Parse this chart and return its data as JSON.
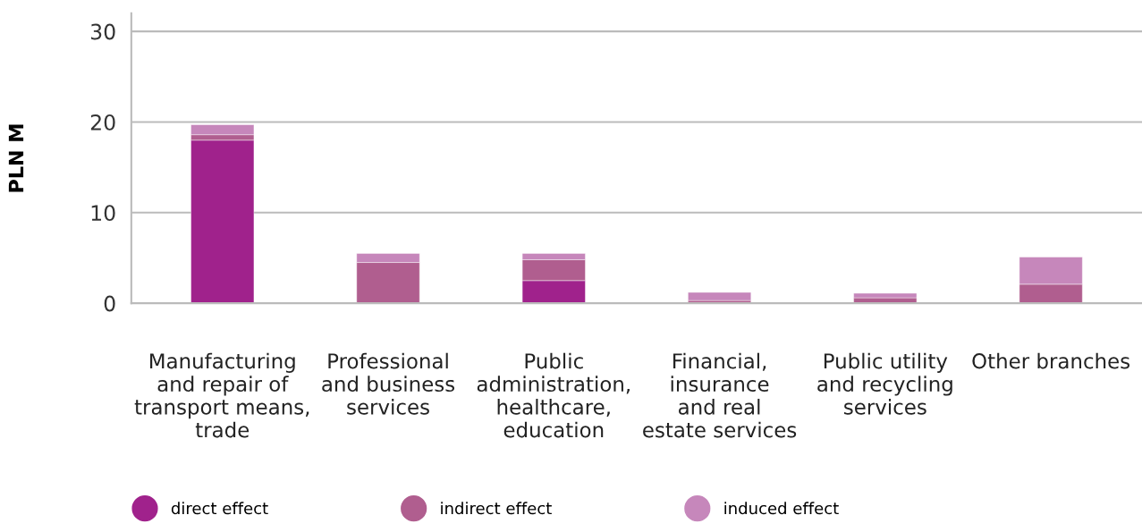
{
  "chart_data": {
    "type": "bar",
    "stacked": true,
    "ylabel": "PLN M",
    "categories": [
      "Manufacturing\nand repair of\ntransport means,\ntrade",
      "Professional\nand business\nservices",
      "Public\nadministration,\nhealthcare,\neducation",
      "Financial,\ninsurance\nand real\nestate services",
      "Public utility\nand recycling\nservices",
      "Other branches"
    ],
    "series": [
      {
        "name": "direct effect",
        "color": "#a0228c",
        "values": [
          18.0,
          0,
          2.5,
          0,
          0,
          0
        ]
      },
      {
        "name": "indirect effect",
        "color": "#b05e8f",
        "values": [
          0.6,
          4.5,
          2.3,
          0.3,
          0.6,
          2.1
        ]
      },
      {
        "name": "induced effect",
        "color": "#c687bb",
        "values": [
          1.1,
          1.0,
          0.7,
          0.9,
          0.5,
          3.0
        ]
      }
    ],
    "ylim": [
      0,
      32
    ],
    "yticks": [
      0,
      10,
      20,
      30
    ],
    "grid": "y",
    "legend": "bottom",
    "marker": "circle"
  }
}
